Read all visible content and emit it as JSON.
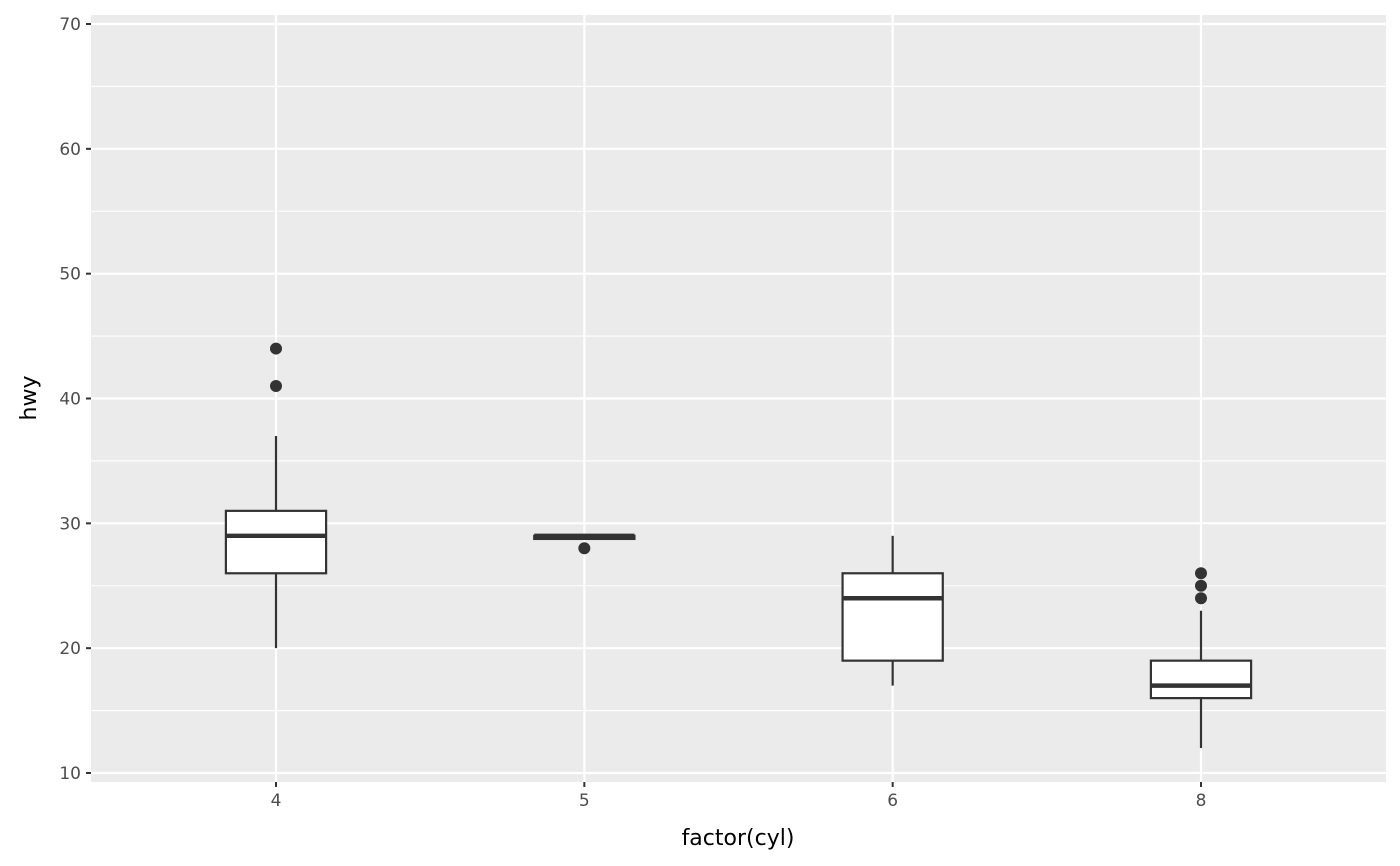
{
  "chart_data": {
    "type": "boxplot",
    "title": "",
    "xlabel": "factor(cyl)",
    "ylabel": "hwy",
    "categories": [
      "4",
      "5",
      "6",
      "8"
    ],
    "ylim": [
      9.28,
      70.72
    ],
    "yticks": [
      10,
      20,
      30,
      40,
      50,
      60,
      70
    ],
    "grid": true,
    "panel_background": "#ebebeb",
    "grid_color": "#ffffff",
    "box_color": "#333333",
    "box_fill": "#ffffff",
    "boxes": [
      {
        "category": "4",
        "whisker_low": 20,
        "q1": 26,
        "median": 29,
        "q3": 31,
        "whisker_high": 37,
        "outliers": [
          41,
          44
        ]
      },
      {
        "category": "5",
        "whisker_low": 28.75,
        "q1": 28.75,
        "median": 29,
        "q3": 29,
        "whisker_high": 29,
        "outliers": [
          28
        ]
      },
      {
        "category": "6",
        "whisker_low": 17,
        "q1": 19,
        "median": 24,
        "q3": 26,
        "whisker_high": 29,
        "outliers": []
      },
      {
        "category": "8",
        "whisker_low": 12,
        "q1": 16,
        "median": 17,
        "q3": 19,
        "whisker_high": 23,
        "outliers": [
          24,
          25,
          26
        ]
      }
    ]
  }
}
